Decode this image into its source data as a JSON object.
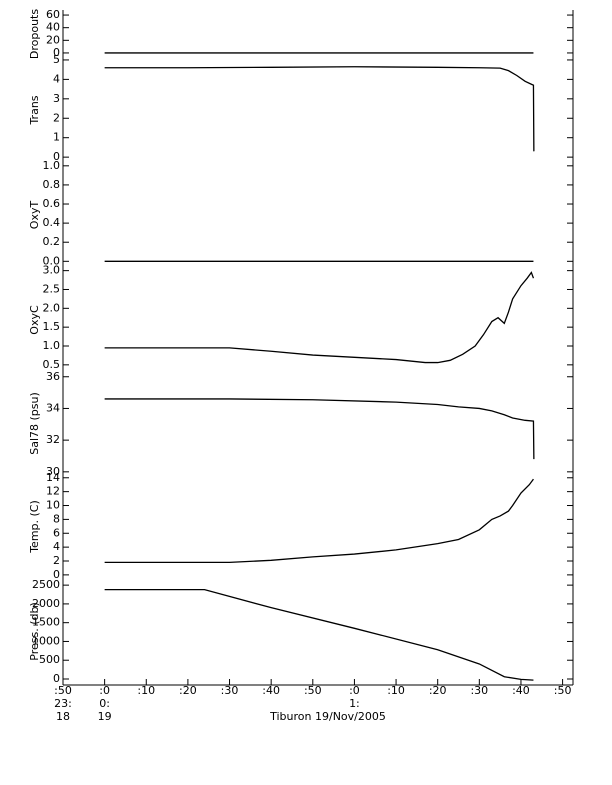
{
  "chart_data": [
    {
      "type": "line",
      "ylabel": "Dropouts",
      "color": "#000000",
      "xlim": [
        50,
        172.5
      ],
      "ylim": [
        -8,
        68
      ],
      "yticks": [
        0,
        20,
        40,
        60
      ],
      "x": [
        60,
        163
      ],
      "values": [
        0,
        0
      ]
    },
    {
      "type": "line",
      "ylabel": "Trans",
      "color": "#000000",
      "xlim": [
        50,
        172.5
      ],
      "ylim": [
        -0.25,
        5.1
      ],
      "yticks": [
        0,
        1,
        2,
        3,
        4,
        5
      ],
      "x": [
        60,
        80,
        100,
        120,
        140,
        150,
        155,
        157,
        159,
        161,
        162.5,
        163,
        163.1
      ],
      "values": [
        4.6,
        4.6,
        4.62,
        4.65,
        4.62,
        4.6,
        4.58,
        4.45,
        4.2,
        3.9,
        3.75,
        3.7,
        0.3
      ]
    },
    {
      "type": "line",
      "ylabel": "OxyT",
      "color": "#000000",
      "xlim": [
        50,
        172.5
      ],
      "ylim": [
        -0.07,
        1.04
      ],
      "yticks": [
        {
          "value": 0,
          "label": "0.0"
        },
        {
          "value": 0.2,
          "label": "0.2"
        },
        {
          "value": 0.4,
          "label": "0.4"
        },
        {
          "value": 0.6,
          "label": "0.6"
        },
        {
          "value": 0.8,
          "label": "0.8"
        },
        {
          "value": 1,
          "label": "1.0"
        }
      ],
      "x": [
        60,
        163
      ],
      "values": [
        0,
        0
      ]
    },
    {
      "type": "line",
      "ylabel": "OxyC",
      "color": "#000000",
      "xlim": [
        50,
        172.5
      ],
      "ylim": [
        0.31,
        3.07
      ],
      "yticks": [
        {
          "value": 0.5,
          "label": "0.5"
        },
        {
          "value": 1,
          "label": "1.0"
        },
        {
          "value": 1.5,
          "label": "1.5"
        },
        {
          "value": 2,
          "label": "2.0"
        },
        {
          "value": 2.5,
          "label": "2.5"
        },
        {
          "value": 3,
          "label": "3.0"
        }
      ],
      "x": [
        60,
        90,
        100,
        110,
        120,
        130,
        137,
        140,
        143,
        146,
        149,
        151,
        153,
        154.5,
        156,
        157,
        158,
        160,
        161.5,
        162.5,
        163
      ],
      "values": [
        0.95,
        0.95,
        0.86,
        0.76,
        0.7,
        0.64,
        0.56,
        0.56,
        0.62,
        0.78,
        1.0,
        1.3,
        1.65,
        1.75,
        1.6,
        1.9,
        2.25,
        2.6,
        2.8,
        2.95,
        2.8
      ]
    },
    {
      "type": "line",
      "ylabel": "Sal78 (psu)",
      "color": "#000000",
      "xlim": [
        50,
        172.5
      ],
      "ylim": [
        29.8,
        36.3
      ],
      "yticks": [
        30,
        32,
        34,
        36
      ],
      "x": [
        60,
        90,
        110,
        130,
        140,
        145,
        150,
        153,
        156,
        158,
        161,
        163,
        163.1
      ],
      "values": [
        34.6,
        34.6,
        34.55,
        34.4,
        34.25,
        34.1,
        34.0,
        33.85,
        33.6,
        33.4,
        33.25,
        33.2,
        30.8
      ]
    },
    {
      "type": "line",
      "ylabel": "Temp. (C)",
      "color": "#000000",
      "xlim": [
        50,
        172.5
      ],
      "ylim": [
        -0.45,
        14.4
      ],
      "yticks": [
        0,
        2,
        4,
        6,
        8,
        10,
        12,
        14
      ],
      "x": [
        60,
        90,
        100,
        110,
        120,
        130,
        140,
        145,
        150,
        153,
        155,
        157,
        158,
        160,
        162,
        163
      ],
      "values": [
        1.8,
        1.8,
        2.1,
        2.6,
        3.0,
        3.6,
        4.5,
        5.1,
        6.5,
        8.0,
        8.5,
        9.2,
        10.0,
        11.8,
        13.0,
        13.8
      ]
    },
    {
      "type": "line",
      "ylabel": "Press. (db)",
      "color": "#000000",
      "xlim": [
        50,
        172.5
      ],
      "ylim": [
        -160,
        2690
      ],
      "yticks": [
        0,
        500,
        1000,
        1500,
        2000,
        2500
      ],
      "x": [
        60,
        84,
        100,
        120,
        140,
        150,
        156,
        160,
        163
      ],
      "values": [
        2380,
        2380,
        1900,
        1350,
        780,
        400,
        60,
        -10,
        -30
      ],
      "xlabel": "Tiburon 19/Nov/2005",
      "xticks": [
        {
          "value": 50,
          "label": ":50"
        },
        {
          "value": 60,
          "label": ":0"
        },
        {
          "value": 70,
          "label": ":10"
        },
        {
          "value": 80,
          "label": ":20"
        },
        {
          "value": 90,
          "label": ":30"
        },
        {
          "value": 100,
          "label": ":40"
        },
        {
          "value": 110,
          "label": ":50"
        },
        {
          "value": 120,
          "label": ":0"
        },
        {
          "value": 130,
          "label": ":10"
        },
        {
          "value": 140,
          "label": ":20"
        },
        {
          "value": 150,
          "label": ":30"
        },
        {
          "value": 160,
          "label": ":40"
        },
        {
          "value": 170,
          "label": ":50"
        }
      ],
      "xticks_hour": [
        {
          "value": 50,
          "label": "23:"
        },
        {
          "value": 60,
          "label": "0:"
        },
        {
          "value": 120,
          "label": "1:"
        }
      ],
      "xticks_day": [
        {
          "value": 50,
          "label": "18"
        },
        {
          "value": 60,
          "label": "19"
        }
      ]
    }
  ]
}
